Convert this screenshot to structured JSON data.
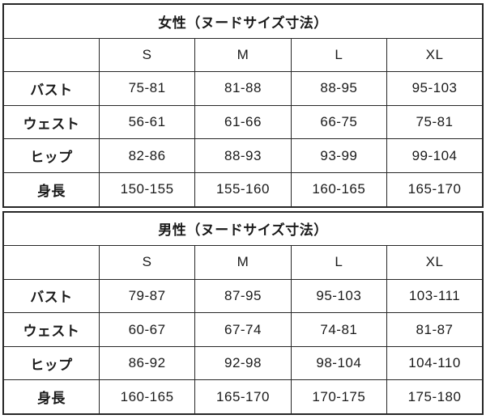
{
  "page": {
    "background": "#ffffff",
    "border_color": "#262626",
    "text_color": "#1a1a1a"
  },
  "size_chart": {
    "corner_label": "",
    "columns": [
      "S",
      "M",
      "L",
      "XL"
    ],
    "sections": [
      {
        "title": "女性（ヌードサイズ寸法）",
        "rows": [
          {
            "label": "バスト",
            "values": [
              "75-81",
              "81-88",
              "88-95",
              "95-103"
            ]
          },
          {
            "label": "ウェスト",
            "values": [
              "56-61",
              "61-66",
              "66-75",
              "75-81"
            ]
          },
          {
            "label": "ヒップ",
            "values": [
              "82-86",
              "88-93",
              "93-99",
              "99-104"
            ]
          },
          {
            "label": "身長",
            "values": [
              "150-155",
              "155-160",
              "160-165",
              "165-170"
            ]
          }
        ]
      },
      {
        "title": "男性（ヌードサイズ寸法）",
        "rows": [
          {
            "label": "バスト",
            "values": [
              "79-87",
              "87-95",
              "95-103",
              "103-111"
            ]
          },
          {
            "label": "ウェスト",
            "values": [
              "60-67",
              "67-74",
              "74-81",
              "81-87"
            ]
          },
          {
            "label": "ヒップ",
            "values": [
              "86-92",
              "92-98",
              "98-104",
              "104-110"
            ]
          },
          {
            "label": "身長",
            "values": [
              "160-165",
              "165-170",
              "170-175",
              "175-180"
            ]
          }
        ]
      }
    ]
  }
}
